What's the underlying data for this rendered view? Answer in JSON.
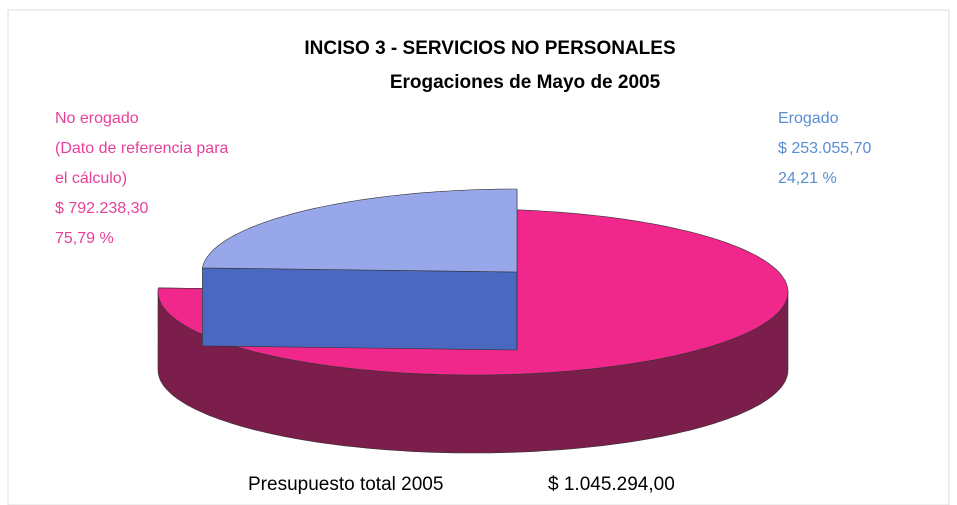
{
  "chart_data": {
    "type": "pie",
    "title": "INCISO 3 - SERVICIOS NO PERSONALES",
    "subtitle": "Erogaciones de Mayo de 2005",
    "categories": [
      "No erogado",
      "Erogado"
    ],
    "values": [
      75.79,
      24.21
    ],
    "value_labels": [
      "75,79 %",
      "24,21 %"
    ],
    "amounts": [
      {
        "value": 792238.3,
        "label": "$ 792.238,30"
      },
      {
        "value": 253055.7,
        "label": "$ 253.055,70"
      }
    ],
    "annotation": "(Dato de referencia para el cálculo)",
    "colors": [
      "#f0288c",
      "#98a6ea"
    ],
    "side_colors": [
      "#7c1e4c",
      "#4a68c0"
    ],
    "label_colors": [
      "#e8409a",
      "#5a8ed2"
    ],
    "total_text": "Presupuesto total 2005",
    "total": {
      "value": 1045294.0,
      "label": "$ 1.045.294,00"
    }
  }
}
